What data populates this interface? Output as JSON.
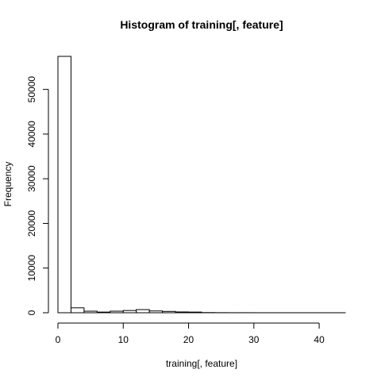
{
  "chart_data": {
    "type": "bar",
    "title": "Histogram of training[, feature]",
    "xlabel": "training[, feature]",
    "ylabel": "Frequency",
    "bin_edges": [
      0,
      2,
      4,
      6,
      8,
      10,
      12,
      14,
      16,
      18,
      20,
      22,
      24,
      26,
      28,
      30,
      32,
      34,
      36,
      38,
      40,
      42,
      44
    ],
    "values": [
      57400,
      1100,
      350,
      150,
      350,
      500,
      700,
      400,
      300,
      180,
      150,
      40,
      20,
      10,
      10,
      5,
      5,
      5,
      5,
      5,
      5,
      5
    ],
    "xlim": [
      0,
      44
    ],
    "ylim": [
      0,
      57400
    ],
    "x_ticks": [
      0,
      10,
      20,
      30,
      40
    ],
    "y_ticks": [
      0,
      10000,
      20000,
      30000,
      40000,
      50000
    ],
    "x_tick_labels": [
      "0",
      "10",
      "20",
      "30",
      "40"
    ],
    "y_tick_labels": [
      "0",
      "10000",
      "20000",
      "30000",
      "40000",
      "50000"
    ],
    "grid": false,
    "legend": "none"
  }
}
